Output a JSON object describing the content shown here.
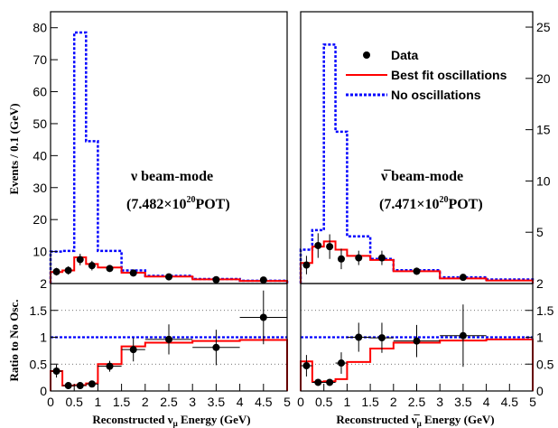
{
  "colors": {
    "best_fit": "#ff0000",
    "no_osc": "#0000ff",
    "data": "#000000",
    "frame": "#000000"
  },
  "chart_data": [
    {
      "type": "histogram",
      "panel": "top-left",
      "ylabel": "Events / 0.1 (GeV)",
      "ylim": [
        0,
        85
      ],
      "yticks": [
        10,
        20,
        30,
        40,
        50,
        60,
        70,
        80
      ],
      "xlim": [
        0,
        5
      ],
      "bin_edges": [
        0,
        0.25,
        0.5,
        0.75,
        1.0,
        1.5,
        2.0,
        3.0,
        4.0,
        5.0
      ],
      "series": [
        {
          "name": "Best fit oscillations",
          "style": "solid",
          "values": [
            3.6,
            4.1,
            8.2,
            6.1,
            5.0,
            3.4,
            2.2,
            1.3,
            0.8
          ]
        },
        {
          "name": "No oscillations",
          "style": "dashed",
          "values": [
            10.0,
            10.2,
            78.5,
            44.5,
            10.2,
            4.1,
            2.4,
            1.4,
            0.9
          ]
        }
      ],
      "data_points": [
        {
          "x": 0.125,
          "y": 3.7,
          "yerr": 1.2
        },
        {
          "x": 0.375,
          "y": 4.1,
          "yerr": 1.3
        },
        {
          "x": 0.625,
          "y": 7.5,
          "yerr": 1.8
        },
        {
          "x": 0.875,
          "y": 5.6,
          "yerr": 1.5
        },
        {
          "x": 1.25,
          "y": 4.7,
          "yerr": 1.0
        },
        {
          "x": 1.75,
          "y": 3.3,
          "yerr": 0.8
        },
        {
          "x": 2.5,
          "y": 2.1,
          "yerr": 0.5
        },
        {
          "x": 3.5,
          "y": 1.2,
          "yerr": 0.4
        },
        {
          "x": 4.5,
          "y": 1.1,
          "yerr": 0.4
        }
      ],
      "annotation_line1": "ν beam-mode",
      "annotation_line2": {
        "prefix": "(7.482×10",
        "exponent": "20",
        "suffix": "POT)"
      }
    },
    {
      "type": "histogram",
      "panel": "top-right",
      "ylim": [
        0,
        26.5
      ],
      "yticks": [
        5,
        10,
        15,
        20,
        25
      ],
      "xlim": [
        0,
        5
      ],
      "bin_edges": [
        0,
        0.25,
        0.5,
        0.75,
        1.0,
        1.5,
        2.0,
        3.0,
        4.0,
        5.0
      ],
      "legend": [
        {
          "label": "Data",
          "kind": "marker"
        },
        {
          "label": "Best fit oscillations",
          "kind": "solid"
        },
        {
          "label": "No oscillations",
          "kind": "dashed"
        }
      ],
      "series": [
        {
          "name": "Best fit oscillations",
          "style": "solid",
          "values": [
            2.0,
            3.6,
            4.1,
            3.3,
            2.7,
            2.3,
            1.2,
            0.5,
            0.3
          ]
        },
        {
          "name": "No oscillations",
          "style": "dashed",
          "values": [
            3.3,
            5.2,
            23.3,
            14.8,
            4.6,
            2.4,
            1.3,
            0.6,
            0.4
          ]
        }
      ],
      "data_points": [
        {
          "x": 0.125,
          "y": 1.8,
          "yerr": 0.9
        },
        {
          "x": 0.375,
          "y": 3.7,
          "yerr": 1.2
        },
        {
          "x": 0.625,
          "y": 3.6,
          "yerr": 1.2
        },
        {
          "x": 0.875,
          "y": 2.4,
          "yerr": 1.0
        },
        {
          "x": 1.25,
          "y": 2.5,
          "yerr": 0.7
        },
        {
          "x": 1.75,
          "y": 2.5,
          "yerr": 0.7
        },
        {
          "x": 2.5,
          "y": 1.2,
          "yerr": 0.35
        },
        {
          "x": 3.5,
          "y": 0.6,
          "yerr": 0.25
        }
      ],
      "annotation_line1": "ν̅ beam-mode",
      "annotation_line2": {
        "prefix": "(7.471×10",
        "exponent": "20",
        "suffix": "POT)"
      }
    },
    {
      "type": "histogram",
      "panel": "bottom-left",
      "ylabel": "Ratio to No Osc.",
      "xlabel": {
        "prefix": "Reconstructed  ν",
        "subscript": "μ",
        "suffix": " Energy (GeV)"
      },
      "ylim": [
        0,
        2
      ],
      "yticks": [
        0,
        0.5,
        1,
        1.5,
        2
      ],
      "ytick_labels": [
        "0",
        "0.5",
        "1",
        "1.5",
        "2"
      ],
      "xlim": [
        0,
        5
      ],
      "xticks": [
        0,
        0.5,
        1,
        1.5,
        2,
        2.5,
        3,
        3.5,
        4,
        4.5,
        5
      ],
      "xtick_labels": [
        "0",
        "0.5",
        "1",
        "1.5",
        "2",
        "2.5",
        "3",
        "3.5",
        "4",
        "4.5",
        "5"
      ],
      "grid_lines": [
        0.5,
        1.5
      ],
      "unity_line": 1,
      "bin_edges": [
        0,
        0.25,
        0.5,
        0.75,
        1.0,
        1.5,
        2.0,
        3.0,
        4.0,
        5.0
      ],
      "series": [
        {
          "name": "Best fit oscillations",
          "style": "solid",
          "values": [
            0.37,
            0.1,
            0.11,
            0.14,
            0.5,
            0.83,
            0.9,
            0.93,
            0.95
          ]
        }
      ],
      "data_points": [
        {
          "x": 0.125,
          "y": 0.37,
          "yerr": 0.12,
          "xerr": 0.125
        },
        {
          "x": 0.375,
          "y": 0.1,
          "yerr": 0.05,
          "xerr": 0.125
        },
        {
          "x": 0.625,
          "y": 0.1,
          "yerr": 0.03,
          "xerr": 0.125
        },
        {
          "x": 0.875,
          "y": 0.13,
          "yerr": 0.04,
          "xerr": 0.125
        },
        {
          "x": 1.25,
          "y": 0.46,
          "yerr": 0.1,
          "xerr": 0.25
        },
        {
          "x": 1.75,
          "y": 0.77,
          "yerr": 0.22,
          "xerr": 0.25
        },
        {
          "x": 2.5,
          "y": 0.96,
          "yerr": 0.28,
          "xerr": 0.5
        },
        {
          "x": 3.5,
          "y": 0.81,
          "yerr": 0.33,
          "xerr": 0.5
        },
        {
          "x": 4.5,
          "y": 1.37,
          "yerr": 0.5,
          "xerr": 0.5
        }
      ]
    },
    {
      "type": "histogram",
      "panel": "bottom-right",
      "xlabel": {
        "prefix": "Reconstructed  ν̅",
        "subscript": "μ",
        "suffix": " Energy (GeV)"
      },
      "ylim": [
        0,
        2
      ],
      "yticks": [
        0,
        0.5,
        1,
        1.5,
        2
      ],
      "ytick_labels": [
        "0",
        "0.5",
        "1",
        "1.5",
        "2"
      ],
      "xlim": [
        0,
        5
      ],
      "xticks": [
        0,
        0.5,
        1,
        1.5,
        2,
        2.5,
        3,
        3.5,
        4,
        4.5,
        5
      ],
      "xtick_labels": [
        "0",
        "0.5",
        "1",
        "1.5",
        "2",
        "2.5",
        "3",
        "3.5",
        "4",
        "4.5",
        "5"
      ],
      "grid_lines": [
        0.5,
        1.5
      ],
      "unity_line": 1,
      "bin_edges": [
        0,
        0.25,
        0.5,
        0.75,
        1.0,
        1.5,
        2.0,
        3.0,
        4.0,
        5.0
      ],
      "series": [
        {
          "name": "Best fit oscillations",
          "style": "solid",
          "values": [
            0.55,
            0.17,
            0.18,
            0.22,
            0.54,
            0.79,
            0.9,
            0.94,
            0.96
          ]
        }
      ],
      "data_points": [
        {
          "x": 0.125,
          "y": 0.47,
          "yerr": 0.2,
          "xerr": 0.125
        },
        {
          "x": 0.375,
          "y": 0.16,
          "yerr": 0.06,
          "xerr": 0.125
        },
        {
          "x": 0.625,
          "y": 0.16,
          "yerr": 0.06,
          "xerr": 0.125
        },
        {
          "x": 0.875,
          "y": 0.52,
          "yerr": 0.2,
          "xerr": 0.125
        },
        {
          "x": 1.25,
          "y": 1.0,
          "yerr": 0.27,
          "xerr": 0.25
        },
        {
          "x": 1.75,
          "y": 0.99,
          "yerr": 0.28,
          "xerr": 0.25
        },
        {
          "x": 2.5,
          "y": 0.93,
          "yerr": 0.3,
          "xerr": 0.5
        },
        {
          "x": 3.5,
          "y": 1.03,
          "yerr": 0.58,
          "xerr": 0.5
        }
      ]
    }
  ]
}
